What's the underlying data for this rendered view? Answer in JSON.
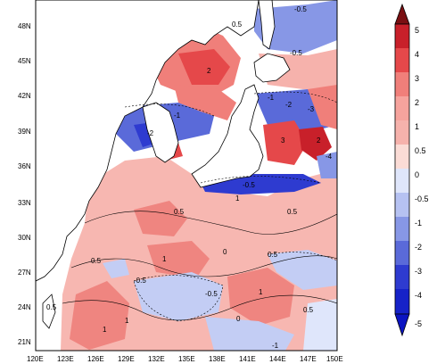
{
  "map": {
    "longitude_labels": [
      "120E",
      "123E",
      "126E",
      "129E",
      "132E",
      "135E",
      "138E",
      "141E",
      "144E",
      "147E",
      "150E"
    ],
    "latitude_labels": [
      "21N",
      "24N",
      "27N",
      "30N",
      "33N",
      "36N",
      "39N",
      "42N",
      "45N",
      "48N"
    ],
    "contour_labels": [
      "0.5",
      "0",
      "-0.5",
      "1",
      "-1",
      "2",
      "-2",
      "3",
      "-3",
      "-4"
    ]
  },
  "colorbar": {
    "labels": [
      "5",
      "4",
      "3",
      "2",
      "1",
      "0.5",
      "0",
      "-0.5",
      "-1",
      "-2",
      "-3",
      "-4",
      "-5"
    ],
    "colors": [
      "#7a0f12",
      "#c8202a",
      "#e5484a",
      "#f07f7a",
      "#f6b2ac",
      "#fbdcd6",
      "#ffffff",
      "#dfe6fb",
      "#b6c2f2",
      "#8797e6",
      "#5a6ad9",
      "#2e3bd0",
      "#0b14c2"
    ]
  }
}
